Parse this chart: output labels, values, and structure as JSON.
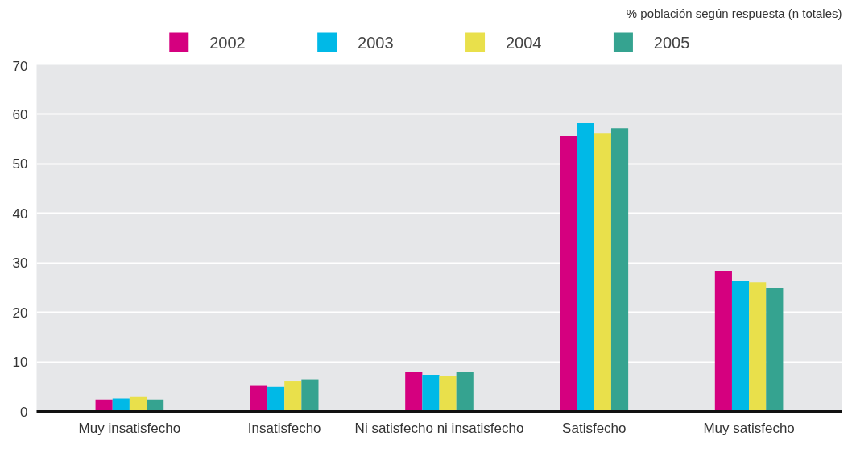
{
  "chart_data": {
    "type": "bar",
    "categories": [
      "Muy insatisfecho",
      "Insatisfecho",
      "Ni satisfecho ni insatisfecho",
      "Satisfecho",
      "Muy satisfecho"
    ],
    "series": [
      {
        "name": "2002",
        "color": "#d5007f",
        "values": [
          2.4,
          5.2,
          7.9,
          55.6,
          28.4
        ]
      },
      {
        "name": "2003",
        "color": "#00b9e7",
        "values": [
          2.6,
          5.0,
          7.4,
          58.2,
          26.3
        ]
      },
      {
        "name": "2004",
        "color": "#e9e04b",
        "values": [
          2.9,
          6.1,
          7.1,
          56.2,
          26.1
        ]
      },
      {
        "name": "2005",
        "color": "#35a390",
        "values": [
          2.4,
          6.5,
          7.9,
          57.2,
          25.0
        ]
      }
    ],
    "ylim": [
      0,
      70
    ],
    "yticks": [
      0,
      10,
      20,
      30,
      40,
      50,
      60,
      70
    ],
    "grid": "y",
    "legend": "top",
    "annotations": [
      "% población según respuesta (n totales)"
    ]
  }
}
